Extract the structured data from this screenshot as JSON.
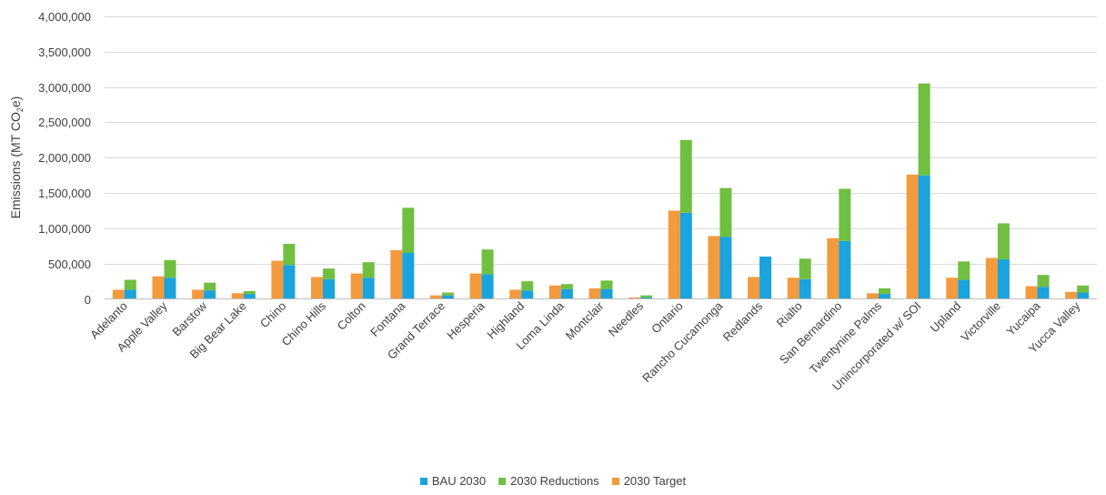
{
  "chart_data": {
    "type": "bar",
    "ylabel_main": "Emissions (MT CO",
    "ylabel_sub": "2",
    "ylabel_end": "e)",
    "ylim": [
      0,
      4000000
    ],
    "yticks": [
      0,
      500000,
      1000000,
      1500000,
      2000000,
      2500000,
      3000000,
      3500000,
      4000000
    ],
    "ytick_labels": [
      "0",
      "500,000",
      "1,000,000",
      "1,500,000",
      "2,000,000",
      "2,500,000",
      "3,000,000",
      "3,500,000",
      "4,000,000"
    ],
    "grid": true,
    "legend_position": "bottom",
    "categories": [
      "Adelanto",
      "Apple Valley",
      "Barstow",
      "Big Bear Lake",
      "Chino",
      "Chino Hills",
      "Colton",
      "Fontana",
      "Grand Terrace",
      "Hesperia",
      "Highland",
      "Loma Linda",
      "Montclair",
      "Needles",
      "Ontario",
      "Rancho Cucamonga",
      "Redlands",
      "Rialto",
      "San Bernardino",
      "Twentynine Palms",
      "Unincorporated w/ SOI",
      "Upland",
      "Victorville",
      "Yucaipa",
      "Yucca Valley"
    ],
    "series": [
      {
        "name": "BAU 2030",
        "color": "#1aa3dc",
        "stack": "bau",
        "values": [
          130000,
          300000,
          120000,
          70000,
          480000,
          280000,
          300000,
          650000,
          50000,
          350000,
          120000,
          140000,
          140000,
          20000,
          1220000,
          880000,
          600000,
          280000,
          820000,
          70000,
          1750000,
          270000,
          560000,
          170000,
          90000
        ]
      },
      {
        "name": "2030 Reductions",
        "color": "#70bf41",
        "stack": "bau",
        "values": [
          140000,
          250000,
          110000,
          40000,
          300000,
          150000,
          220000,
          640000,
          40000,
          350000,
          130000,
          70000,
          120000,
          30000,
          1030000,
          690000,
          0,
          290000,
          740000,
          80000,
          1300000,
          260000,
          510000,
          170000,
          100000
        ]
      },
      {
        "name": "2030 Target",
        "color": "#f39a3d",
        "stack": "target",
        "values": [
          130000,
          320000,
          130000,
          80000,
          540000,
          310000,
          360000,
          690000,
          50000,
          360000,
          130000,
          190000,
          150000,
          20000,
          1250000,
          890000,
          310000,
          300000,
          860000,
          80000,
          1760000,
          300000,
          580000,
          180000,
          100000
        ]
      }
    ]
  }
}
